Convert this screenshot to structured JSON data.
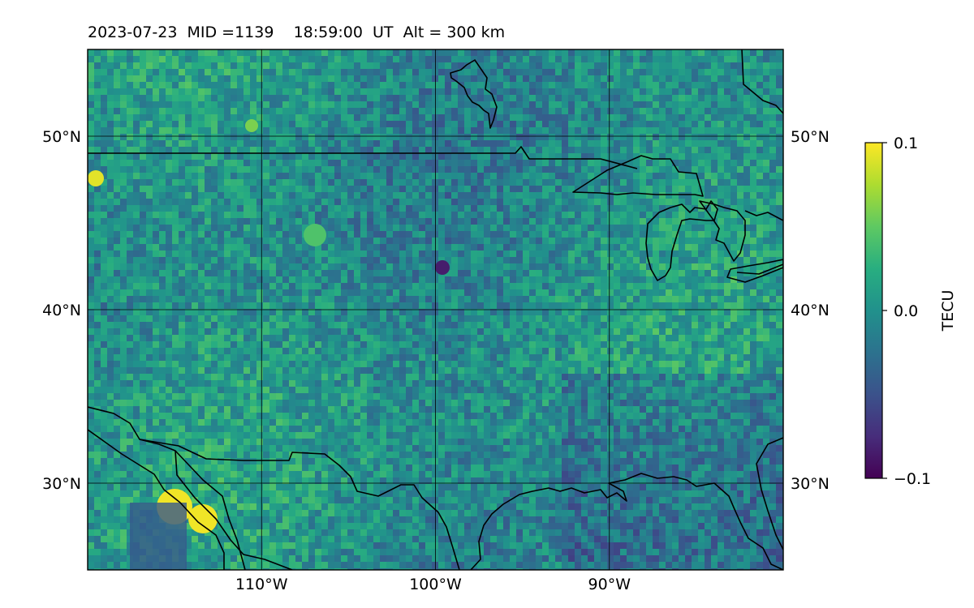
{
  "title": "2023-07-23  MID =1139    18:59:00  UT  Alt = 300 km",
  "map": {
    "lon_range": [
      -120,
      -80
    ],
    "lat_range": [
      25,
      55
    ],
    "lat_ticks": [
      {
        "value": 30,
        "label": "30°N"
      },
      {
        "value": 40,
        "label": "40°N"
      },
      {
        "value": 50,
        "label": "50°N"
      }
    ],
    "lon_ticks": [
      {
        "value": -110,
        "label": "110°W"
      },
      {
        "value": -100,
        "label": "100°W"
      },
      {
        "value": -90,
        "label": "90°W"
      }
    ],
    "grid": true
  },
  "colorbar": {
    "label": "TECU",
    "colormap": "viridis",
    "min": -0.1,
    "max": 0.1,
    "ticks": [
      {
        "value": 0.1,
        "label": "0.1"
      },
      {
        "value": 0.0,
        "label": "0.0"
      },
      {
        "value": -0.1,
        "label": "−0.1"
      }
    ]
  },
  "colors": {
    "background_field": "#2a8b8a",
    "coastline": "#000000",
    "grid": "#000000"
  }
}
